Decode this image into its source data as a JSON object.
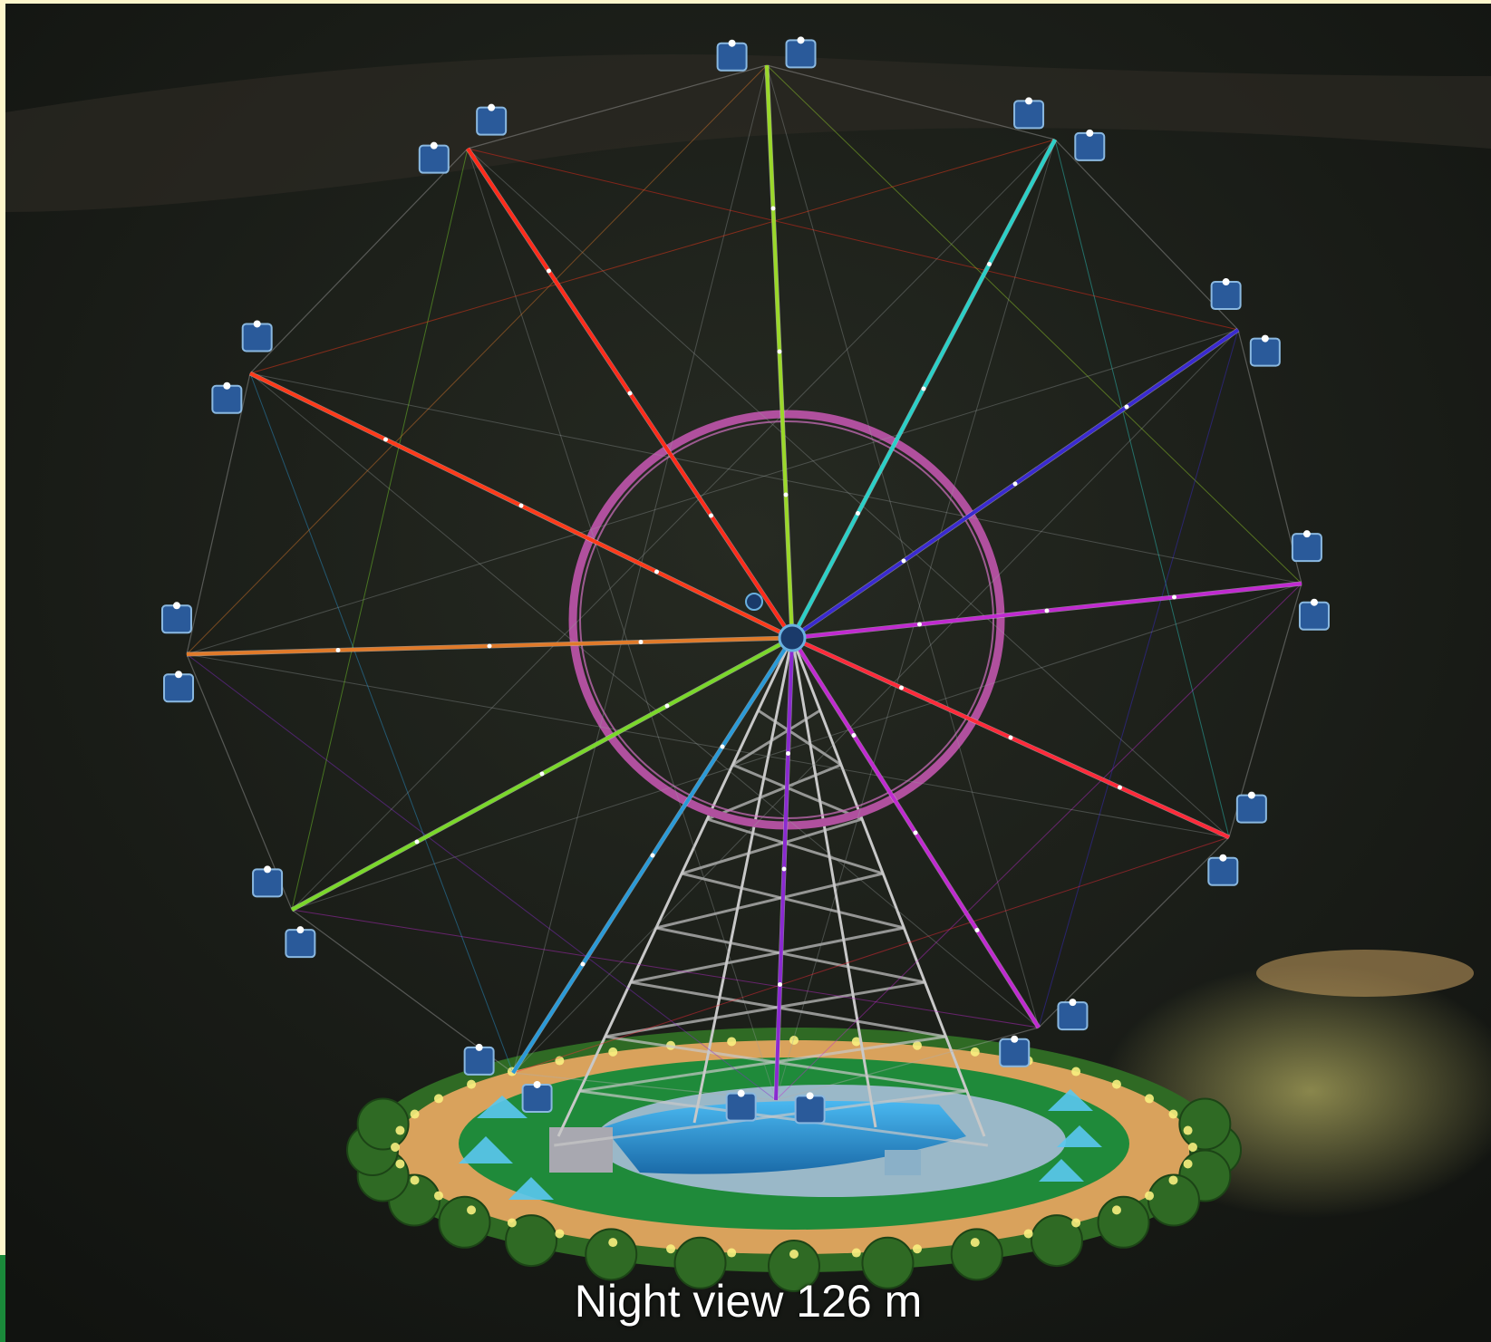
{
  "caption": "Night view 126 m",
  "colors": {
    "background": "#1a1c17",
    "ring": "#b0509e",
    "plaza": "#d9a25c",
    "pool": "#2a8fd0",
    "gondola": "#2a5a9a",
    "trees": "#2f6a24"
  },
  "spoke_colors": [
    "#ff2a1a",
    "#9bd82a",
    "#2ad0c8",
    "#3a2ad0",
    "#c02ad0",
    "#ff2a3a",
    "#c02ad0",
    "#8a2ad0",
    "#2a9ad8",
    "#7ad82a",
    "#e07a2a",
    "#ff3a1a"
  ]
}
